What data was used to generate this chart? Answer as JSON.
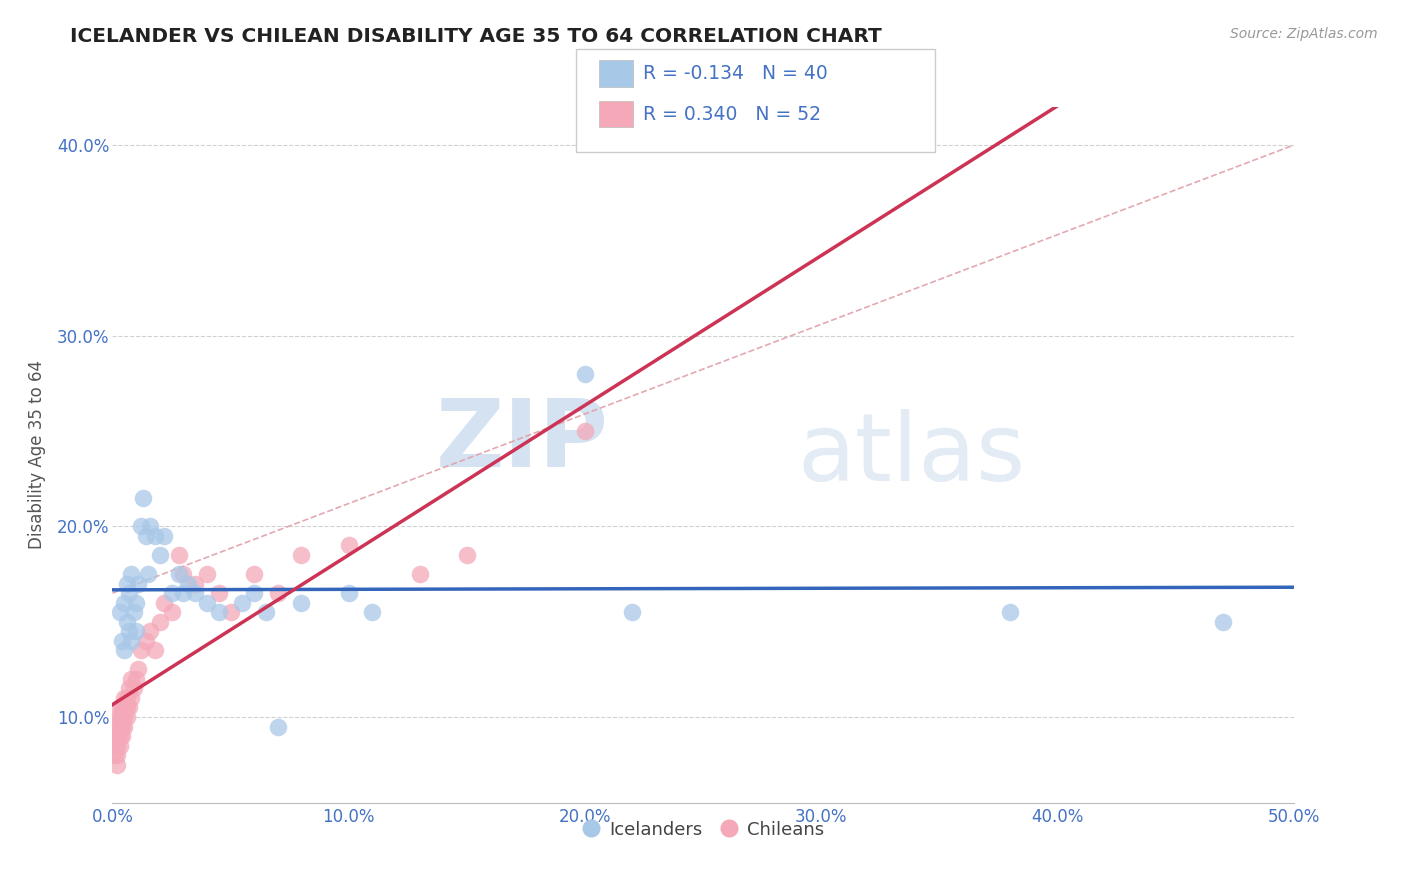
{
  "title": "ICELANDER VS CHILEAN DISABILITY AGE 35 TO 64 CORRELATION CHART",
  "source_text": "Source: ZipAtlas.com",
  "ylabel": "Disability Age 35 to 64",
  "xlim": [
    0.0,
    0.5
  ],
  "ylim": [
    0.055,
    0.42
  ],
  "xticks": [
    0.0,
    0.1,
    0.2,
    0.3,
    0.4,
    0.5
  ],
  "xticklabels": [
    "0.0%",
    "10.0%",
    "20.0%",
    "30.0%",
    "40.0%",
    "50.0%"
  ],
  "yticks": [
    0.1,
    0.2,
    0.3,
    0.4
  ],
  "yticklabels": [
    "10.0%",
    "20.0%",
    "30.0%",
    "40.0%"
  ],
  "icelander_color": "#A8C8E8",
  "chilean_color": "#F4A8B8",
  "trendline_icelander_color": "#3366BB",
  "trendline_chilean_color": "#CC3355",
  "dashed_line_color": "#E8A0A8",
  "legend_icelander_R": "-0.134",
  "legend_icelander_N": "40",
  "legend_chilean_R": "0.340",
  "legend_chilean_N": "52",
  "watermark_zip": "ZIP",
  "watermark_atlas": "atlas",
  "background_color": "#ffffff",
  "icelander_x": [
    0.003,
    0.004,
    0.005,
    0.005,
    0.006,
    0.006,
    0.007,
    0.007,
    0.008,
    0.008,
    0.009,
    0.01,
    0.01,
    0.011,
    0.012,
    0.013,
    0.014,
    0.015,
    0.016,
    0.018,
    0.02,
    0.022,
    0.025,
    0.028,
    0.03,
    0.032,
    0.035,
    0.04,
    0.045,
    0.055,
    0.06,
    0.065,
    0.07,
    0.08,
    0.1,
    0.11,
    0.2,
    0.22,
    0.38,
    0.47
  ],
  "icelander_y": [
    0.155,
    0.14,
    0.135,
    0.16,
    0.15,
    0.17,
    0.145,
    0.165,
    0.14,
    0.175,
    0.155,
    0.145,
    0.16,
    0.17,
    0.2,
    0.215,
    0.195,
    0.175,
    0.2,
    0.195,
    0.185,
    0.195,
    0.165,
    0.175,
    0.165,
    0.17,
    0.165,
    0.16,
    0.155,
    0.16,
    0.165,
    0.155,
    0.095,
    0.16,
    0.165,
    0.155,
    0.28,
    0.155,
    0.155,
    0.15
  ],
  "chilean_x": [
    0.001,
    0.001,
    0.001,
    0.002,
    0.002,
    0.002,
    0.002,
    0.002,
    0.002,
    0.003,
    0.003,
    0.003,
    0.003,
    0.003,
    0.004,
    0.004,
    0.004,
    0.004,
    0.005,
    0.005,
    0.005,
    0.005,
    0.006,
    0.006,
    0.006,
    0.007,
    0.007,
    0.008,
    0.008,
    0.009,
    0.01,
    0.011,
    0.012,
    0.014,
    0.016,
    0.018,
    0.02,
    0.022,
    0.025,
    0.028,
    0.03,
    0.035,
    0.04,
    0.045,
    0.05,
    0.06,
    0.07,
    0.08,
    0.1,
    0.13,
    0.15,
    0.2
  ],
  "chilean_y": [
    0.08,
    0.085,
    0.09,
    0.075,
    0.08,
    0.085,
    0.09,
    0.095,
    0.1,
    0.085,
    0.09,
    0.095,
    0.1,
    0.105,
    0.09,
    0.095,
    0.1,
    0.105,
    0.095,
    0.1,
    0.105,
    0.11,
    0.1,
    0.105,
    0.11,
    0.105,
    0.115,
    0.11,
    0.12,
    0.115,
    0.12,
    0.125,
    0.135,
    0.14,
    0.145,
    0.135,
    0.15,
    0.16,
    0.155,
    0.185,
    0.175,
    0.17,
    0.175,
    0.165,
    0.155,
    0.175,
    0.165,
    0.185,
    0.19,
    0.175,
    0.185,
    0.25
  ]
}
